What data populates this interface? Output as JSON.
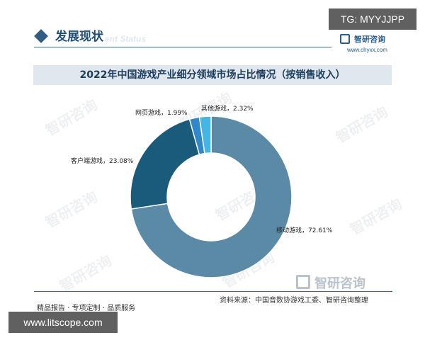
{
  "overlay": {
    "top_right_tag": "TG: MYYJJPP",
    "bottom_left_tag": "www.litscope.com"
  },
  "header": {
    "title": "发展现状",
    "subtitle": "ent Status",
    "logo_name": "智研咨询",
    "logo_url": "www.chyxx.com"
  },
  "watermark": {
    "text": "智研咨询"
  },
  "footer": {
    "source": "资料来源：中国音数协游戏工委、智研咨询整理",
    "tagline": "精品报告 · 专项定制 · 品质服务",
    "logo_name": "智研咨询"
  },
  "colors": {
    "mobile": "#5b8aa7",
    "client": "#1a5a7a",
    "web": "#2f88c8",
    "other": "#45b5e6",
    "title_bar": "#e1e7ee",
    "brand": "#2d5f86"
  },
  "chart_data": {
    "type": "pie",
    "donut": true,
    "title": "2022年中国游戏产业细分领域市场占比情况（按销售收入）",
    "slices": [
      {
        "name": "移动游戏",
        "value": 72.61,
        "label": "移动游戏，72.61%",
        "color": "#5b8aa7"
      },
      {
        "name": "客户端游戏",
        "value": 23.08,
        "label": "客户端游戏，23.08%",
        "color": "#1a5a7a"
      },
      {
        "name": "网页游戏",
        "value": 1.99,
        "label": "网页游戏，1.99%",
        "color": "#2f88c8"
      },
      {
        "name": "其他游戏",
        "value": 2.32,
        "label": "其他游戏，2.32%",
        "color": "#45b5e6"
      }
    ],
    "legend": "none"
  }
}
